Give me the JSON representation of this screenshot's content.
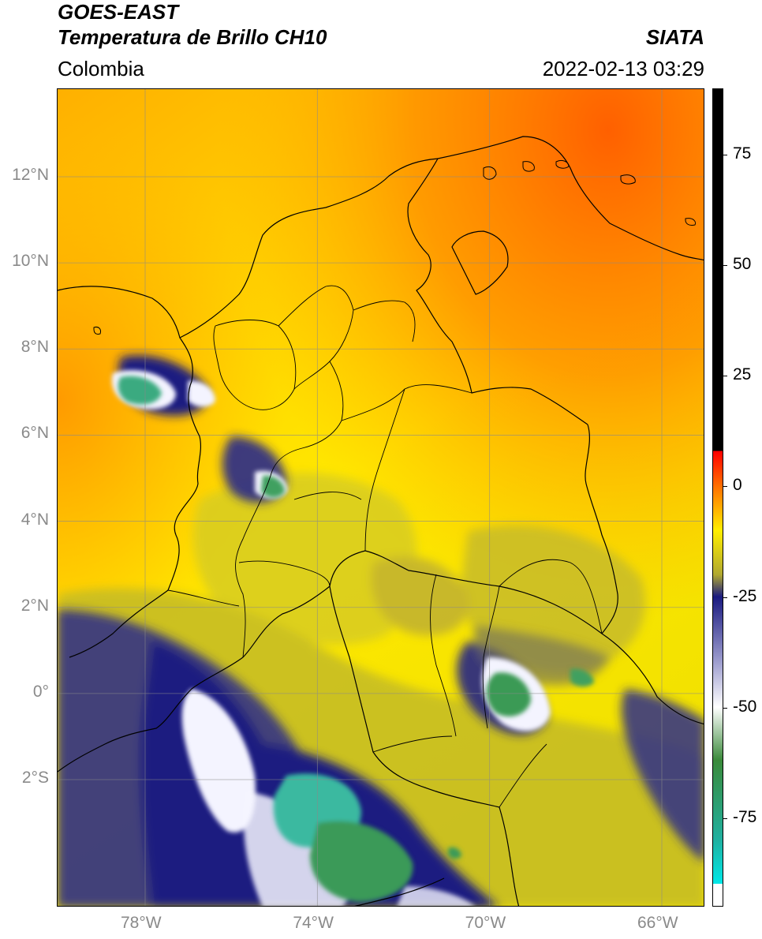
{
  "header": {
    "satellite": "GOES-EAST",
    "product": "Temperatura de Brillo CH10",
    "agency": "SIATA",
    "region": "Colombia",
    "datetime": "2022-02-13 03:29"
  },
  "map": {
    "lon_range": [
      -80,
      -65
    ],
    "lat_range": [
      -5,
      14
    ],
    "lat_ticks": [
      {
        "value": 12,
        "label": "12°N"
      },
      {
        "value": 10,
        "label": "10°N"
      },
      {
        "value": 8,
        "label": "8°N"
      },
      {
        "value": 6,
        "label": "6°N"
      },
      {
        "value": 4,
        "label": "4°N"
      },
      {
        "value": 2,
        "label": "2°N"
      },
      {
        "value": 0,
        "label": "0°"
      },
      {
        "value": -2,
        "label": "2°S"
      }
    ],
    "lon_ticks": [
      {
        "value": -78,
        "label": "78°W"
      },
      {
        "value": -74,
        "label": "74°W"
      },
      {
        "value": -70,
        "label": "70°W"
      },
      {
        "value": -66,
        "label": "66°W"
      }
    ],
    "colors": {
      "warm_orange": "#ff6a00",
      "yellow": "#ffe000",
      "olive": "#c8c020",
      "navy": "#151a80",
      "white": "#ffffff",
      "green": "#3a9a50",
      "teal": "#30c0a0"
    }
  },
  "colorbar": {
    "range": [
      -95,
      90
    ],
    "ticks": [
      {
        "value": 75,
        "label": "75"
      },
      {
        "value": 50,
        "label": "50"
      },
      {
        "value": 25,
        "label": "25"
      },
      {
        "value": 0,
        "label": "0"
      },
      {
        "value": -25,
        "label": "-25"
      },
      {
        "value": -50,
        "label": "-50"
      },
      {
        "value": -75,
        "label": "-75"
      }
    ],
    "stops": [
      {
        "value": 90,
        "color": "#000000"
      },
      {
        "value": 8,
        "color": "#000000"
      },
      {
        "value": 8,
        "color": "#ff0000"
      },
      {
        "value": 0,
        "color": "#ff7000"
      },
      {
        "value": -10,
        "color": "#ffee00"
      },
      {
        "value": -20,
        "color": "#b0a830"
      },
      {
        "value": -25,
        "color": "#1a1a80"
      },
      {
        "value": -40,
        "color": "#a0a0d0"
      },
      {
        "value": -50,
        "color": "#ffffff"
      },
      {
        "value": -62,
        "color": "#3a8a3a"
      },
      {
        "value": -80,
        "color": "#20b0a0"
      },
      {
        "value": -90,
        "color": "#00e8e8"
      },
      {
        "value": -90,
        "color": "#ffffff"
      },
      {
        "value": -95,
        "color": "#ffffff"
      }
    ]
  }
}
